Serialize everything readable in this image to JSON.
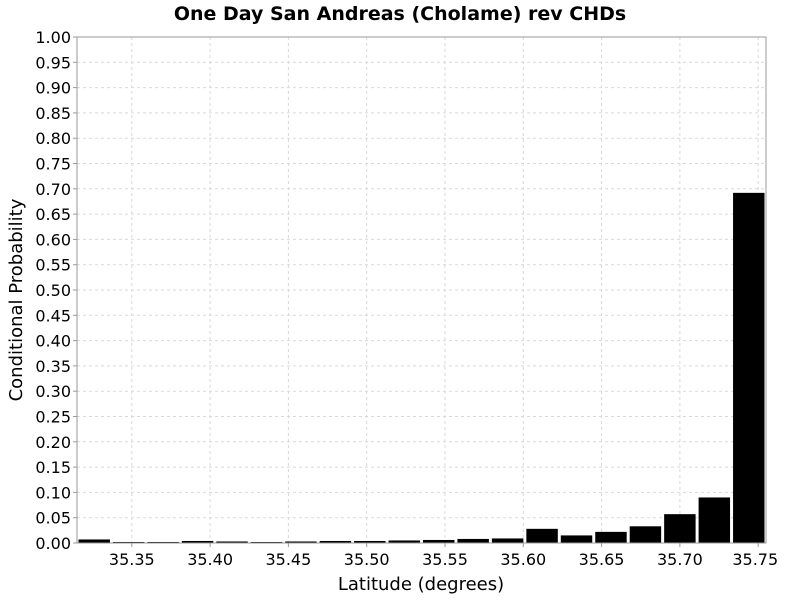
{
  "chart_data": {
    "type": "bar",
    "title": "One Day San Andreas (Cholame) rev CHDs",
    "xlabel": "Latitude (degrees)",
    "ylabel": "Conditional Probability",
    "xlim": [
      35.315,
      35.755
    ],
    "ylim": [
      0.0,
      1.0
    ],
    "grid": true,
    "bar_color": "#000000",
    "x_ticks": [
      "35.35",
      "35.40",
      "35.45",
      "35.50",
      "35.55",
      "35.60",
      "35.65",
      "35.70",
      "35.75"
    ],
    "y_ticks": [
      "0.00",
      "0.05",
      "0.10",
      "0.15",
      "0.20",
      "0.25",
      "0.30",
      "0.35",
      "0.40",
      "0.45",
      "0.50",
      "0.55",
      "0.60",
      "0.65",
      "0.70",
      "0.75",
      "0.80",
      "0.85",
      "0.90",
      "0.95",
      "1.00"
    ],
    "bin_width": 0.022,
    "x": [
      35.326,
      35.348,
      35.37,
      35.392,
      35.414,
      35.436,
      35.458,
      35.48,
      35.502,
      35.524,
      35.546,
      35.568,
      35.59,
      35.612,
      35.634,
      35.656,
      35.678,
      35.7,
      35.722,
      35.744
    ],
    "values": [
      0.007,
      0.002,
      0.002,
      0.004,
      0.003,
      0.001,
      0.003,
      0.004,
      0.004,
      0.005,
      0.006,
      0.008,
      0.009,
      0.028,
      0.015,
      0.022,
      0.033,
      0.057,
      0.09,
      0.692
    ]
  }
}
